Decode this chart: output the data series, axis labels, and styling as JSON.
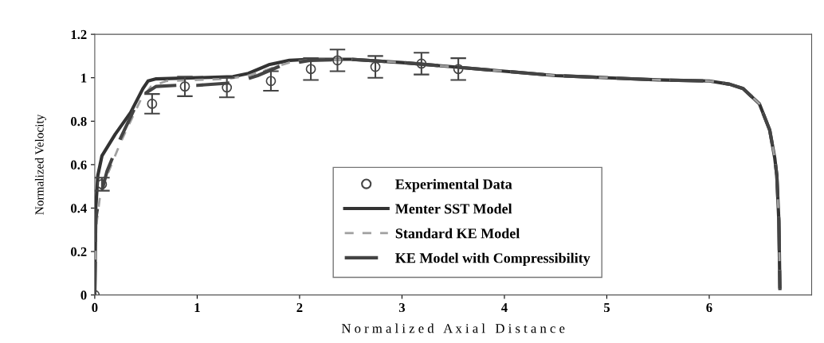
{
  "chart_data": {
    "type": "line",
    "xlabel": "N o r m a l i z e d   A x i a l   D i s t a n c e",
    "ylabel": "Normalized Velocity",
    "xlim": [
      0,
      7
    ],
    "xticks": [
      0,
      1,
      2,
      3,
      4,
      5,
      6
    ],
    "ylim": [
      0,
      1.2
    ],
    "yticks": [
      0,
      0.2,
      0.4,
      0.6,
      0.8,
      1,
      1.2
    ],
    "grid": false,
    "legend": "bottom",
    "series": [
      {
        "name": "Experimental Data",
        "type": "scatter",
        "marker": "circle",
        "color": "#444444",
        "x": [
          0,
          0.07,
          0.56,
          0.88,
          1.29,
          1.72,
          2.11,
          2.37,
          2.74,
          3.19,
          3.55
        ],
        "values": [
          0,
          0.51,
          0.88,
          0.96,
          0.955,
          0.985,
          1.04,
          1.08,
          1.05,
          1.065,
          1.04
        ],
        "errors": [
          null,
          0.03,
          0.045,
          0.045,
          0.045,
          0.045,
          0.05,
          0.05,
          0.05,
          0.05,
          0.05
        ]
      },
      {
        "name": "Menter SST Model",
        "line_style": "solid",
        "color": "#333333",
        "x": [
          0,
          0.01,
          0.03,
          0.07,
          0.2,
          0.35,
          0.47,
          0.52,
          0.6,
          1.0,
          1.35,
          1.5,
          1.7,
          1.9,
          2.1,
          2.5,
          3.0,
          3.5,
          4.0,
          4.5,
          5.0,
          5.5,
          6.0,
          6.2,
          6.33,
          6.49,
          6.59,
          6.64,
          6.66,
          6.68,
          6.69
        ],
        "values": [
          0,
          0.4,
          0.55,
          0.64,
          0.74,
          0.84,
          0.95,
          0.985,
          0.995,
          1.0,
          1.005,
          1.02,
          1.06,
          1.08,
          1.085,
          1.085,
          1.07,
          1.05,
          1.03,
          1.01,
          1.0,
          0.99,
          0.985,
          0.97,
          0.95,
          0.88,
          0.76,
          0.63,
          0.55,
          0.34,
          0.03
        ]
      },
      {
        "name": "Standard KE Model",
        "line_style": "dashed",
        "color": "#a0a0a0",
        "x": [
          0,
          0.01,
          0.05,
          0.12,
          0.25,
          0.35,
          0.45,
          0.55,
          0.7,
          1.0,
          1.3,
          1.5,
          1.7,
          1.9,
          2.1,
          2.5,
          3.0,
          3.5,
          4.0,
          4.5,
          5.0,
          5.5,
          6.0,
          6.2,
          6.33,
          6.49,
          6.59,
          6.64,
          6.66,
          6.68,
          6.69
        ],
        "values": [
          0,
          0.3,
          0.45,
          0.55,
          0.7,
          0.8,
          0.9,
          0.96,
          0.985,
          0.99,
          0.995,
          1.01,
          1.04,
          1.07,
          1.083,
          1.085,
          1.07,
          1.05,
          1.03,
          1.01,
          1.0,
          0.99,
          0.985,
          0.97,
          0.95,
          0.88,
          0.76,
          0.63,
          0.55,
          0.34,
          0.03
        ]
      },
      {
        "name": "KE Model with Compressibility",
        "line_style": "longdash",
        "color": "#444444",
        "x": [
          0,
          0.01,
          0.03,
          0.12,
          0.25,
          0.35,
          0.42,
          0.5,
          0.6,
          0.8,
          1.0,
          1.3,
          1.46,
          1.59,
          1.84,
          2.1,
          2.5,
          3.0,
          3.5,
          4.0,
          4.5,
          5.0,
          5.5,
          6.0,
          6.2,
          6.33,
          6.49,
          6.59,
          6.64,
          6.66,
          6.68,
          6.69
        ],
        "values": [
          0,
          0.35,
          0.41,
          0.57,
          0.72,
          0.82,
          0.89,
          0.93,
          0.96,
          0.965,
          0.965,
          0.975,
          0.99,
          1.01,
          1.06,
          1.08,
          1.085,
          1.07,
          1.05,
          1.03,
          1.01,
          1.0,
          0.99,
          0.985,
          0.97,
          0.95,
          0.88,
          0.76,
          0.63,
          0.55,
          0.34,
          0.03
        ]
      }
    ]
  }
}
